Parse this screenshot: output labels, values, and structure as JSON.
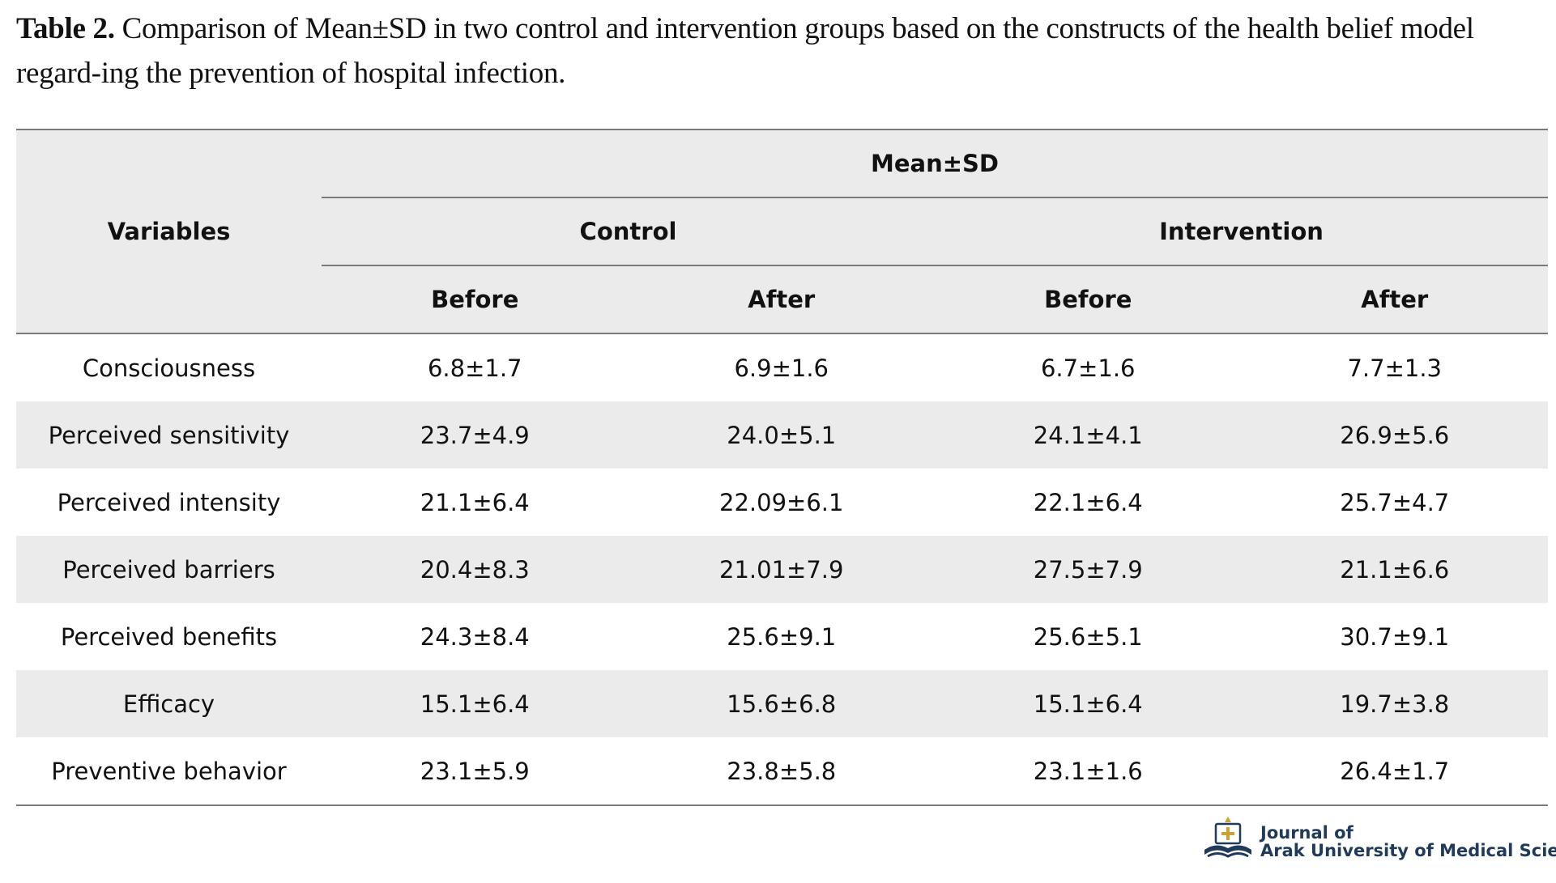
{
  "caption": {
    "label": "Table 2.",
    "text": "Comparison of Mean±SD in two control and intervention groups based on the constructs of the health belief model regard-ing the prevention of hospital infection."
  },
  "table": {
    "header": {
      "variables": "Variables",
      "mean_sd": "Mean±SD",
      "groups": [
        "Control",
        "Intervention"
      ],
      "times": [
        "Before",
        "After",
        "Before",
        "After"
      ]
    },
    "rows": [
      {
        "variable": "Consciousness",
        "values": [
          "6.8±1.7",
          "6.9±1.6",
          "6.7±1.6",
          "7.7±1.3"
        ]
      },
      {
        "variable": "Perceived sensitivity",
        "values": [
          "23.7±4.9",
          "24.0±5.1",
          "24.1±4.1",
          "26.9±5.6"
        ]
      },
      {
        "variable": "Perceived intensity",
        "values": [
          "21.1±6.4",
          "22.09±6.1",
          "22.1±6.4",
          "25.7±4.7"
        ]
      },
      {
        "variable": "Perceived barriers",
        "values": [
          "20.4±8.3",
          "21.01±7.9",
          "27.5±7.9",
          "21.1±6.6"
        ]
      },
      {
        "variable": "Perceived benefits",
        "values": [
          "24.3±8.4",
          "25.6±9.1",
          "25.6±5.1",
          "30.7±9.1"
        ]
      },
      {
        "variable": "Efficacy",
        "values": [
          "15.1±6.4",
          "15.6±6.8",
          "15.1±6.4",
          "19.7±3.8"
        ]
      },
      {
        "variable": "Preventive behavior",
        "values": [
          "23.1±5.9",
          "23.8±5.8",
          "23.1±1.6",
          "26.4±1.7"
        ]
      }
    ]
  },
  "logo": {
    "icon": "journal-emblem-icon",
    "line1": "Journal of",
    "line2": "Arak University of Medical Sciences"
  },
  "colors": {
    "header_fill": "#ebebeb",
    "rule": "#7a7a7a",
    "logo_navy": "#1f3a5a",
    "logo_gold": "#c9a233"
  }
}
